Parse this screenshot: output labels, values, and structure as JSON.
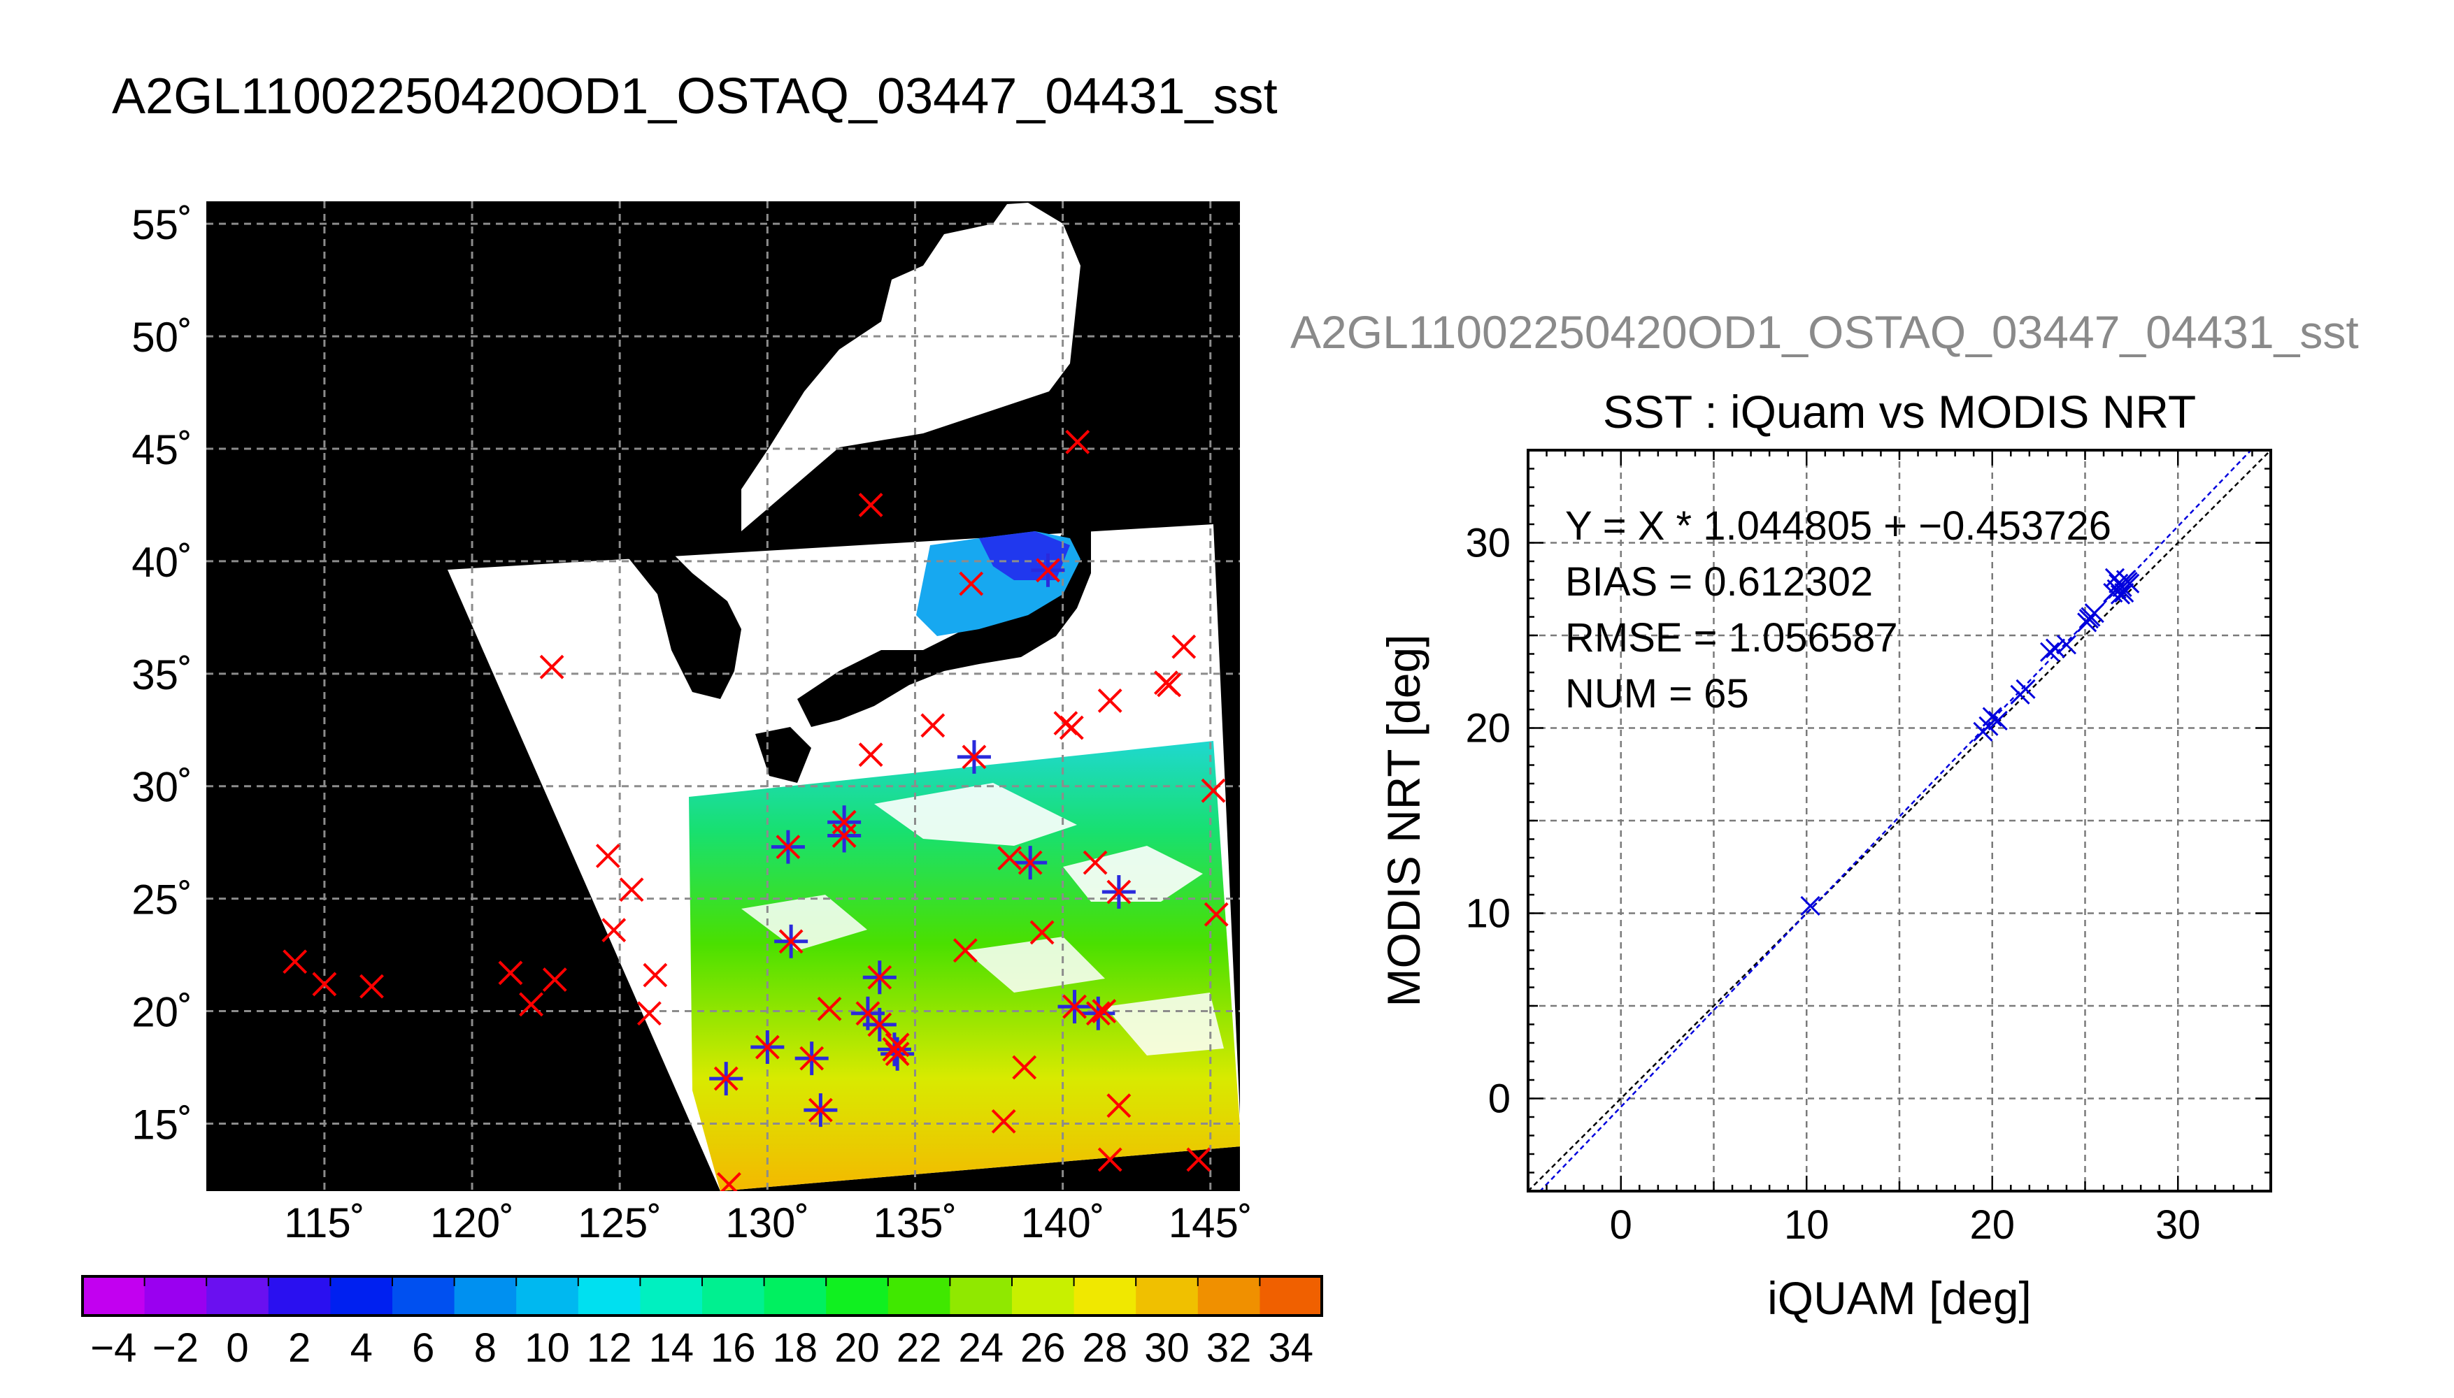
{
  "page": {
    "title": "A2GL11002250420OD1_OSTAQ_03447_04431_sst",
    "subtitle_cut": "A2GL11002250420OD1_OSTAQ_03447_04431_sst"
  },
  "map": {
    "lat_labels": [
      "55˚",
      "50˚",
      "45˚",
      "40˚",
      "35˚",
      "30˚",
      "25˚",
      "20˚",
      "15˚"
    ],
    "lon_labels": [
      "115˚",
      "120˚",
      "125˚",
      "130˚",
      "135˚",
      "140˚",
      "145˚"
    ],
    "lon_range": [
      111,
      146
    ],
    "lat_range": [
      12,
      56
    ],
    "colors": {
      "background": "#000000",
      "land": "#ffffff",
      "iquam_marker": "#ff0000",
      "match_marker": "#2a2adc"
    },
    "iquam_points": [
      [
        114,
        22.2
      ],
      [
        115,
        21.2
      ],
      [
        116.6,
        21.1
      ],
      [
        121.3,
        21.7
      ],
      [
        122,
        20.3
      ],
      [
        122.8,
        21.4
      ],
      [
        122.7,
        35.3
      ],
      [
        124.6,
        26.9
      ],
      [
        124.8,
        23.6
      ],
      [
        125.4,
        25.4
      ],
      [
        126.2,
        21.6
      ],
      [
        126,
        19.9
      ],
      [
        128.6,
        17
      ],
      [
        128.7,
        12.3
      ],
      [
        130,
        18.4
      ],
      [
        130.7,
        27.3
      ],
      [
        130.8,
        23.1
      ],
      [
        131.5,
        17.9
      ],
      [
        131.8,
        15.6
      ],
      [
        132.1,
        20.1
      ],
      [
        132.6,
        28.4
      ],
      [
        132.6,
        27.8
      ],
      [
        133.4,
        19.9
      ],
      [
        133.8,
        21.5
      ],
      [
        133.8,
        19.4
      ],
      [
        134.3,
        18.3
      ],
      [
        134.4,
        18.1
      ],
      [
        134.4,
        18.5
      ],
      [
        133.5,
        31.4
      ],
      [
        133.5,
        42.5
      ],
      [
        135.6,
        32.7
      ],
      [
        136.7,
        22.7
      ],
      [
        137,
        31.3
      ],
      [
        138.2,
        26.8
      ],
      [
        138.9,
        26.6
      ],
      [
        138.7,
        17.5
      ],
      [
        138,
        15.1
      ],
      [
        139.3,
        23.5
      ],
      [
        140.1,
        32.8
      ],
      [
        140.3,
        32.6
      ],
      [
        140.4,
        20.2
      ],
      [
        140.5,
        45.3
      ],
      [
        141.1,
        26.6
      ],
      [
        141.2,
        19.9
      ],
      [
        141.4,
        20
      ],
      [
        141.6,
        33.8
      ],
      [
        141.9,
        25.3
      ],
      [
        141.9,
        15.8
      ],
      [
        141.6,
        13.4
      ],
      [
        143.5,
        34.6
      ],
      [
        143.6,
        34.5
      ],
      [
        144.1,
        36.2
      ],
      [
        144.6,
        13.4
      ],
      [
        145.1,
        29.8
      ],
      [
        145.2,
        24.3
      ],
      [
        139.5,
        39.6
      ],
      [
        136.9,
        39
      ]
    ],
    "match_points": [
      [
        128.6,
        17
      ],
      [
        130,
        18.4
      ],
      [
        130.7,
        27.3
      ],
      [
        130.8,
        23.1
      ],
      [
        131.5,
        17.9
      ],
      [
        131.8,
        15.6
      ],
      [
        132.6,
        28.4
      ],
      [
        132.6,
        27.8
      ],
      [
        133.4,
        19.9
      ],
      [
        133.8,
        21.5
      ],
      [
        133.8,
        19.4
      ],
      [
        134.3,
        18.3
      ],
      [
        134.4,
        18.1
      ],
      [
        137,
        31.3
      ],
      [
        138.9,
        26.6
      ],
      [
        140.4,
        20.2
      ],
      [
        141.2,
        19.9
      ],
      [
        141.9,
        25.3
      ],
      [
        139.5,
        39.6
      ]
    ]
  },
  "colorbar": {
    "tick_labels": [
      "−4",
      "−2",
      "0",
      "2",
      "4",
      "6",
      "8",
      "10",
      "12",
      "14",
      "16",
      "18",
      "20",
      "22",
      "24",
      "26",
      "28",
      "30",
      "32",
      "34"
    ],
    "range": [
      -5,
      35
    ],
    "unit": "deg"
  },
  "chart_data": {
    "type": "scatter",
    "title": "SST : iQuam vs MODIS NRT",
    "xlabel": "iQUAM [deg]",
    "ylabel": "MODIS NRT [deg]",
    "xlim": [
      -5,
      35
    ],
    "ylim": [
      -5,
      35
    ],
    "x_ticks": [
      "0",
      "10",
      "20",
      "30"
    ],
    "y_ticks": [
      "0",
      "10",
      "20",
      "30"
    ],
    "grid": true,
    "annotations": [
      "Y = X * 1.044805 + −0.453726",
      "BIAS = 0.612302",
      "RMSE = 1.056587",
      "NUM = 65"
    ],
    "fit": {
      "slope": 1.044805,
      "intercept": -0.453726
    },
    "series": [
      {
        "marker": "x",
        "color": "#0000dd",
        "points": [
          [
            10.2,
            10.4
          ],
          [
            19.5,
            19.8
          ],
          [
            19.8,
            20.1
          ],
          [
            20,
            20.6
          ],
          [
            20.3,
            20.4
          ],
          [
            21.5,
            21.8
          ],
          [
            21.8,
            22.1
          ],
          [
            23.1,
            24.1
          ],
          [
            23.4,
            24.3
          ],
          [
            24,
            24.5
          ],
          [
            25.1,
            25.7
          ],
          [
            25.3,
            26
          ],
          [
            25.5,
            26.2
          ],
          [
            25.2,
            25.9
          ],
          [
            26.5,
            27.3
          ],
          [
            26.6,
            28.1
          ],
          [
            26.8,
            27.8
          ],
          [
            27,
            27.6
          ],
          [
            27.2,
            28
          ],
          [
            27.3,
            27.9
          ],
          [
            26.9,
            27.2
          ],
          [
            26.7,
            27.5
          ],
          [
            27.1,
            27.3
          ],
          [
            27.4,
            27.8
          ]
        ]
      }
    ]
  }
}
